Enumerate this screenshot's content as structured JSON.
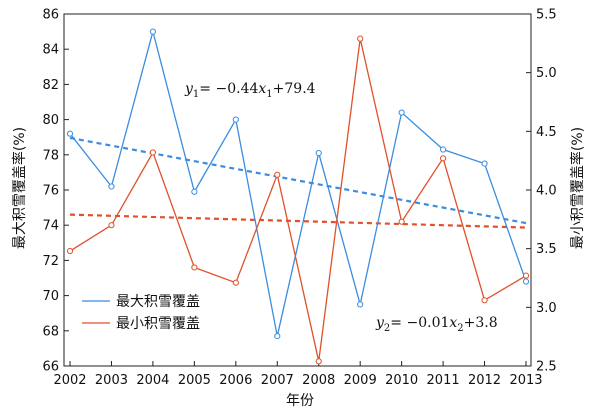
{
  "chart_data": {
    "type": "line",
    "x": [
      2002,
      2003,
      2004,
      2005,
      2006,
      2007,
      2008,
      2009,
      2010,
      2011,
      2012,
      2013
    ],
    "xlabel": "年份",
    "ylabel_left": "最大积雪覆盖率(%)",
    "ylabel_right": "最小积雪覆盖率(%)",
    "ylim_left": [
      66,
      86
    ],
    "yticks_left": [
      66,
      68,
      70,
      72,
      74,
      76,
      78,
      80,
      82,
      84,
      86
    ],
    "ylim_right": [
      2.5,
      5.5
    ],
    "yticks_right": [
      "2.5",
      "3.0",
      "3.5",
      "4.0",
      "4.5",
      "5.0",
      "5.5"
    ],
    "grid": false,
    "legend_position": "lower-left",
    "series": [
      {
        "name": "最大积雪覆盖",
        "axis": "left",
        "color": "#3b8de0",
        "values": [
          79.2,
          76.2,
          85.0,
          75.9,
          80.0,
          67.7,
          78.1,
          69.5,
          80.4,
          78.3,
          77.5,
          70.8
        ]
      },
      {
        "name": "最小积雪覆盖",
        "axis": "right",
        "color": "#e0502a",
        "values": [
          3.48,
          3.7,
          4.32,
          3.34,
          3.21,
          4.13,
          2.54,
          5.29,
          3.73,
          4.27,
          3.06,
          3.27
        ]
      }
    ],
    "trendlines": [
      {
        "axis": "left",
        "color": "#3b8de0",
        "slope": -0.44,
        "intercept": 79.4
      },
      {
        "axis": "right",
        "color": "#e0502a",
        "slope": -0.01,
        "intercept": 3.8
      }
    ],
    "annotations": {
      "eq1": {
        "var": "y",
        "sub": "1",
        "text": "= −0.44",
        "xvar": "x",
        "xsub": "1",
        "tail": "+79.4"
      },
      "eq2": {
        "var": "y",
        "sub": "2",
        "text": "= −0.01",
        "xvar": "x",
        "xsub": "2",
        "tail": "+3.8"
      }
    }
  }
}
